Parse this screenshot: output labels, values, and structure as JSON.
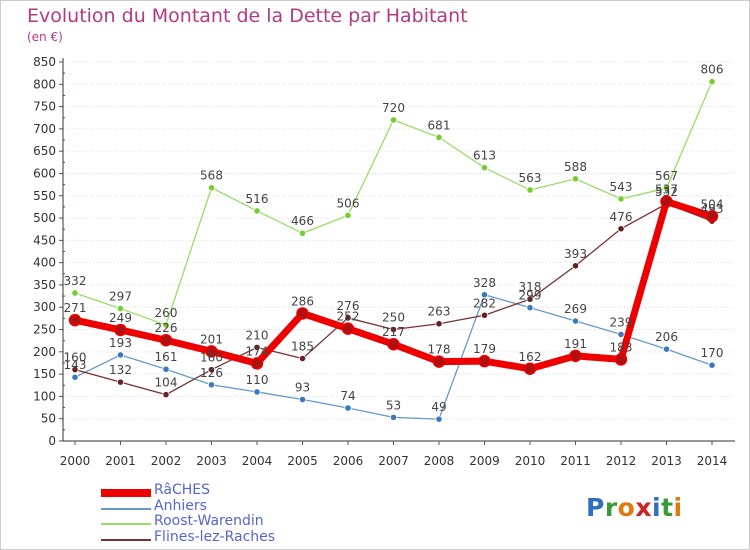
{
  "title": "Evolution du Montant de la Dette par Habitant",
  "unit": "(en €)",
  "logo": "Proxiti",
  "chart_data": {
    "type": "line",
    "title": "Evolution du Montant de la Dette par Habitant",
    "ylabel": "(en €)",
    "ylim": [
      0,
      850
    ],
    "yticks": [
      0,
      50,
      100,
      150,
      200,
      250,
      300,
      350,
      400,
      450,
      500,
      550,
      600,
      650,
      700,
      750,
      800,
      850
    ],
    "grid": "horizontal dotted",
    "legend_position": "bottom-left",
    "categories": [
      "2000",
      "2001",
      "2002",
      "2003",
      "2004",
      "2005",
      "2006",
      "2007",
      "2008",
      "2009",
      "2010",
      "2011",
      "2012",
      "2013",
      "2014"
    ],
    "series": [
      {
        "name": "RâCHES",
        "color": "#ee0000",
        "marker": "#b01010",
        "width": 7,
        "values": [
          271,
          249,
          226,
          201,
          174,
          286,
          252,
          217,
          178,
          179,
          162,
          191,
          183,
          537,
          504
        ]
      },
      {
        "name": "Anhiers",
        "color": "#6699cc",
        "marker": "#3a78c0",
        "width": 1.3,
        "values": [
          143,
          193,
          161,
          126,
          110,
          93,
          74,
          53,
          49,
          328,
          299,
          269,
          239,
          206,
          170
        ]
      },
      {
        "name": "Roost-Warendin",
        "color": "#99dd66",
        "marker": "#77cc33",
        "width": 1.3,
        "values": [
          332,
          297,
          260,
          568,
          516,
          466,
          506,
          720,
          681,
          613,
          563,
          588,
          543,
          567,
          806
        ]
      },
      {
        "name": "Flines-lez-Raches",
        "color": "#773333",
        "marker": "#662222",
        "width": 1.3,
        "values": [
          160,
          132,
          104,
          160,
          210,
          185,
          276,
          250,
          263,
          282,
          318,
          393,
          476,
          532,
          493
        ]
      }
    ]
  }
}
